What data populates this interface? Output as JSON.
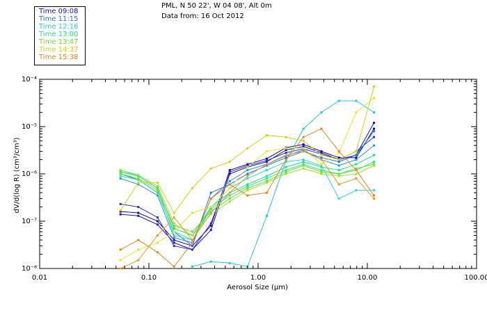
{
  "header": {
    "location": "PML, N 50 22', W 04 08', Alt 0m",
    "date": "Data from: 16 Oct 2012"
  },
  "legend": [
    {
      "label": "Time 09:08",
      "color": "#1a10c8"
    },
    {
      "label": "Time 11:15",
      "color": "#1e78d8"
    },
    {
      "label": "Time 12:16",
      "color": "#22c8e0"
    },
    {
      "label": "Time 13:00",
      "color": "#1ee07a"
    },
    {
      "label": "Time 13:47",
      "color": "#6ee01e"
    },
    {
      "label": "Time 14:37",
      "color": "#d2d214"
    },
    {
      "label": "Time 15:38",
      "color": "#e6821a"
    }
  ],
  "chart_data": {
    "type": "line",
    "xscale": "log",
    "yscale": "log",
    "xlim": [
      0.01,
      100.0
    ],
    "ylim": [
      1e-08,
      0.0001
    ],
    "xlabel": "Aerosol Size (µm)",
    "ylabel": "dV/d(log R) (cm³/cm³)",
    "xticks": [
      {
        "value": 0.01,
        "label": "0.01"
      },
      {
        "value": 0.1,
        "label": "0.10"
      },
      {
        "value": 1.0,
        "label": "1.00"
      },
      {
        "value": 10.0,
        "label": "10.00"
      },
      {
        "value": 100.0,
        "label": "100.00"
      }
    ],
    "ytick_labels": [
      "10⁻⁸",
      "10⁻⁷",
      "10⁻⁶",
      "10⁻⁵",
      "10⁻⁴"
    ],
    "x": [
      0.055,
      0.08,
      0.12,
      0.17,
      0.25,
      0.37,
      0.55,
      0.8,
      1.2,
      1.8,
      2.6,
      3.8,
      5.5,
      7.9,
      11.5
    ],
    "series": [
      {
        "name": "Time 09:08",
        "color": "#1a10c8",
        "values": [
          1.4e-07,
          1.3e-07,
          8.5e-08,
          3.5e-08,
          2.5e-08,
          6.5e-08,
          1e-06,
          1.4e-06,
          1.8e-06,
          3.2e-06,
          3.8e-06,
          2.8e-06,
          2e-06,
          2.5e-06,
          1.2e-05
        ]
      },
      {
        "name": "Time 09:08",
        "color": "#1408a0",
        "values": [
          1.6e-07,
          1.5e-07,
          1e-07,
          4e-08,
          3e-08,
          8e-08,
          1.2e-06,
          1.6e-06,
          2.1e-06,
          3.6e-06,
          4.2e-06,
          3e-06,
          2.2e-06,
          2.2e-06,
          9e-06
        ]
      },
      {
        "name": "Time 09:08",
        "color": "#2a30d8",
        "values": [
          2.3e-07,
          2e-07,
          1.2e-07,
          3e-08,
          2.5e-08,
          9e-08,
          1.1e-06,
          1.5e-06,
          1.9e-06,
          2.8e-06,
          3.4e-06,
          2.6e-06,
          2e-06,
          3e-06,
          6e-06
        ]
      },
      {
        "name": "Time 11:15",
        "color": "#1e78d8",
        "values": [
          1e-06,
          7.5e-07,
          4e-07,
          6e-08,
          3e-08,
          4e-07,
          6e-07,
          1e-06,
          1.5e-06,
          2.2e-06,
          3e-06,
          2.2e-06,
          1.8e-06,
          2.5e-06,
          8e-06
        ]
      },
      {
        "name": "Time 11:15",
        "color": "#2890e8",
        "values": [
          8e-07,
          6e-07,
          3.5e-07,
          4.5e-08,
          3.5e-08,
          3e-07,
          7e-07,
          1.2e-06,
          1.6e-06,
          2.4e-06,
          3.2e-06,
          2e-06,
          1.5e-06,
          2e-06,
          4e-06
        ]
      },
      {
        "name": "Time 12:16",
        "color": "#22c8e0",
        "values": [
          null,
          null,
          null,
          null,
          1.1e-08,
          1.4e-08,
          1.3e-08,
          1.1e-08,
          1.3e-07,
          1.9e-06,
          9e-06,
          2e-05,
          3.5e-05,
          3.5e-05,
          2e-05
        ]
      },
      {
        "name": "Time 12:16",
        "color": "#30d4e8",
        "values": [
          1.2e-06,
          9e-07,
          5e-07,
          5e-08,
          4e-08,
          2e-07,
          5e-07,
          8e-07,
          1.2e-06,
          1.8e-06,
          2e-06,
          1.5e-06,
          3e-07,
          4.5e-07,
          4.5e-07
        ]
      },
      {
        "name": "Time 13:00",
        "color": "#1ee07a",
        "values": [
          1.1e-06,
          9e-07,
          5e-07,
          7e-08,
          5e-08,
          2e-07,
          4e-07,
          6e-07,
          9e-07,
          1.4e-06,
          1.8e-06,
          1.4e-06,
          1.2e-06,
          1.6e-06,
          2.5e-06
        ]
      },
      {
        "name": "Time 13:00",
        "color": "#28e890",
        "values": [
          9e-07,
          7.5e-07,
          4e-07,
          6e-08,
          4e-08,
          1.8e-07,
          3.5e-07,
          5.5e-07,
          8e-07,
          1.2e-06,
          1.6e-06,
          1.2e-06,
          1e-06,
          1.2e-06,
          1.8e-06
        ]
      },
      {
        "name": "Time 13:47",
        "color": "#6ee01e",
        "values": [
          1e-06,
          8e-07,
          4.5e-07,
          8e-08,
          6e-08,
          1.6e-07,
          3e-07,
          5e-07,
          7e-07,
          1.1e-06,
          1.5e-06,
          1.1e-06,
          1e-06,
          1.3e-06,
          1.6e-06
        ]
      },
      {
        "name": "Time 13:47",
        "color": "#96e628",
        "values": [
          1.2e-06,
          9.5e-07,
          5.5e-07,
          9e-08,
          5e-08,
          1.4e-07,
          2.6e-07,
          4.5e-07,
          6.5e-07,
          1e-06,
          1.3e-06,
          1e-06,
          9e-07,
          1e-06,
          1.5e-06
        ]
      },
      {
        "name": "Time 14:37",
        "color": "#d2d214",
        "values": [
          1.7e-07,
          6.5e-07,
          6.5e-07,
          1.5e-07,
          5e-07,
          1.3e-06,
          1.8e-06,
          3.5e-06,
          6.5e-06,
          6e-06,
          5e-06,
          2.5e-06,
          2e-06,
          3e-06,
          7e-05
        ]
      },
      {
        "name": "Time 14:37",
        "color": "#e6e628",
        "values": [
          1.5e-08,
          2.5e-08,
          3.5e-08,
          6e-08,
          1.5e-07,
          2e-07,
          5e-07,
          1.4e-06,
          3e-06,
          3.5e-06,
          3.5e-06,
          1.6e-06,
          2.8e-06,
          2e-05,
          4e-05
        ]
      },
      {
        "name": "Time 15:38",
        "color": "#e6821a",
        "values": [
          2.5e-08,
          4e-08,
          2.2e-08,
          1.1e-08,
          3.5e-08,
          3e-07,
          6e-07,
          3.5e-07,
          4e-07,
          2e-06,
          6e-06,
          9e-06,
          3e-06,
          1.2e-06,
          3.5e-07
        ]
      },
      {
        "name": "Time 15:38",
        "color": "#f09628",
        "values": [
          1e-08,
          1.5e-08,
          5e-08,
          1.2e-07,
          4e-08,
          1.5e-07,
          4e-07,
          9e-07,
          1.6e-06,
          2.5e-06,
          3e-06,
          2e-06,
          6e-07,
          8e-07,
          3e-07
        ]
      }
    ]
  }
}
